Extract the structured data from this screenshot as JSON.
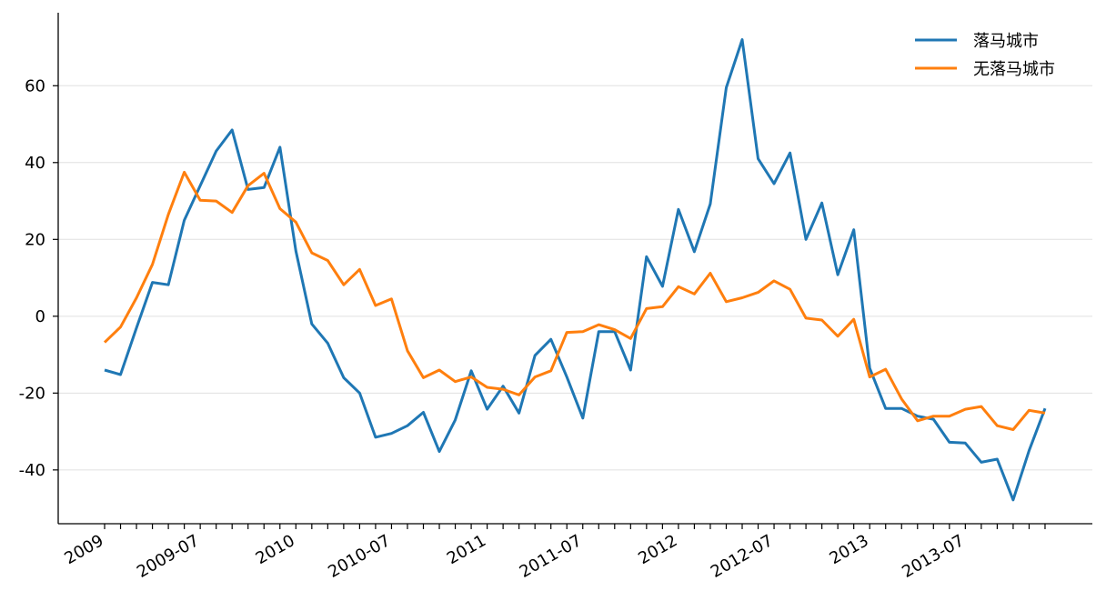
{
  "chart_data": {
    "type": "line",
    "x": [
      "2009-01",
      "2009-02",
      "2009-03",
      "2009-04",
      "2009-05",
      "2009-06",
      "2009-07",
      "2009-08",
      "2009-09",
      "2009-10",
      "2009-11",
      "2009-12",
      "2010-01",
      "2010-02",
      "2010-03",
      "2010-04",
      "2010-05",
      "2010-06",
      "2010-07",
      "2010-08",
      "2010-09",
      "2010-10",
      "2010-11",
      "2010-12",
      "2011-01",
      "2011-02",
      "2011-03",
      "2011-04",
      "2011-05",
      "2011-06",
      "2011-07",
      "2011-08",
      "2011-09",
      "2011-10",
      "2011-11",
      "2011-12",
      "2012-01",
      "2012-02",
      "2012-03",
      "2012-04",
      "2012-05",
      "2012-06",
      "2012-07",
      "2012-08",
      "2012-09",
      "2012-10",
      "2012-11",
      "2012-12",
      "2013-01",
      "2013-02",
      "2013-03",
      "2013-04",
      "2013-05",
      "2013-06",
      "2013-07",
      "2013-08",
      "2013-09",
      "2013-10",
      "2013-11",
      "2013-12"
    ],
    "series": [
      {
        "name": "落马城市",
        "color": "#1f77b4",
        "values": [
          -14,
          -15.2,
          -3,
          8.8,
          8.2,
          25,
          34,
          43,
          48.5,
          33,
          33.5,
          44,
          17,
          -2,
          -7,
          -16,
          -20,
          -31.5,
          -30.5,
          -28.5,
          -25,
          -35.2,
          -27,
          -14.2,
          -24.2,
          -18.2,
          -25.2,
          -10.2,
          -6,
          -15.8,
          -26.5,
          -4,
          -4,
          -14,
          15.5,
          7.8,
          27.8,
          16.8,
          29.2,
          59.5,
          72,
          41,
          34.5,
          42.5,
          20,
          29.5,
          10.8,
          22.5,
          -13.5,
          -24,
          -24,
          -26,
          -26.8,
          -32.8,
          -33,
          -38,
          -37.2,
          -47.8,
          -35,
          -24
        ]
      },
      {
        "name": "无落马城市",
        "color": "#ff7f0e",
        "values": [
          -6.8,
          -2.8,
          4.8,
          13.5,
          26.5,
          37.5,
          30.2,
          30,
          27,
          34,
          37.2,
          28,
          24.5,
          16.5,
          14.5,
          8.2,
          12.2,
          2.8,
          4.5,
          -9,
          -16,
          -14,
          -17,
          -15.8,
          -18.5,
          -19,
          -20.5,
          -15.8,
          -14.2,
          -4.2,
          -4,
          -2.2,
          -3.5,
          -5.8,
          2,
          2.5,
          7.7,
          5.8,
          11.2,
          3.8,
          4.8,
          6.2,
          9.2,
          7,
          -0.5,
          -1,
          -5.2,
          -0.8,
          -15.8,
          -13.8,
          -21.5,
          -27.2,
          -26,
          -26,
          -24.2,
          -23.5,
          -28.5,
          -29.5,
          -24.5,
          -25.2
        ]
      }
    ],
    "ylim": [
      -54,
      79
    ],
    "yticks": [
      -40,
      -20,
      0,
      20,
      40,
      60
    ],
    "ytick_labels": [
      "-40",
      "-20",
      "0",
      "20",
      "40",
      "60"
    ],
    "xtick_labels": [
      "2009",
      "2009-07",
      "2010",
      "2010-07",
      "2011",
      "2011-07",
      "2012",
      "2012-07",
      "2013",
      "2013-07"
    ],
    "xtick_months": [
      "2009-01",
      "2009-07",
      "2010-01",
      "2010-07",
      "2011-01",
      "2011-07",
      "2012-01",
      "2012-07",
      "2013-01",
      "2013-07"
    ],
    "title": "",
    "xlabel": "",
    "ylabel": "",
    "grid": "horizontal",
    "legend": "top-right"
  }
}
